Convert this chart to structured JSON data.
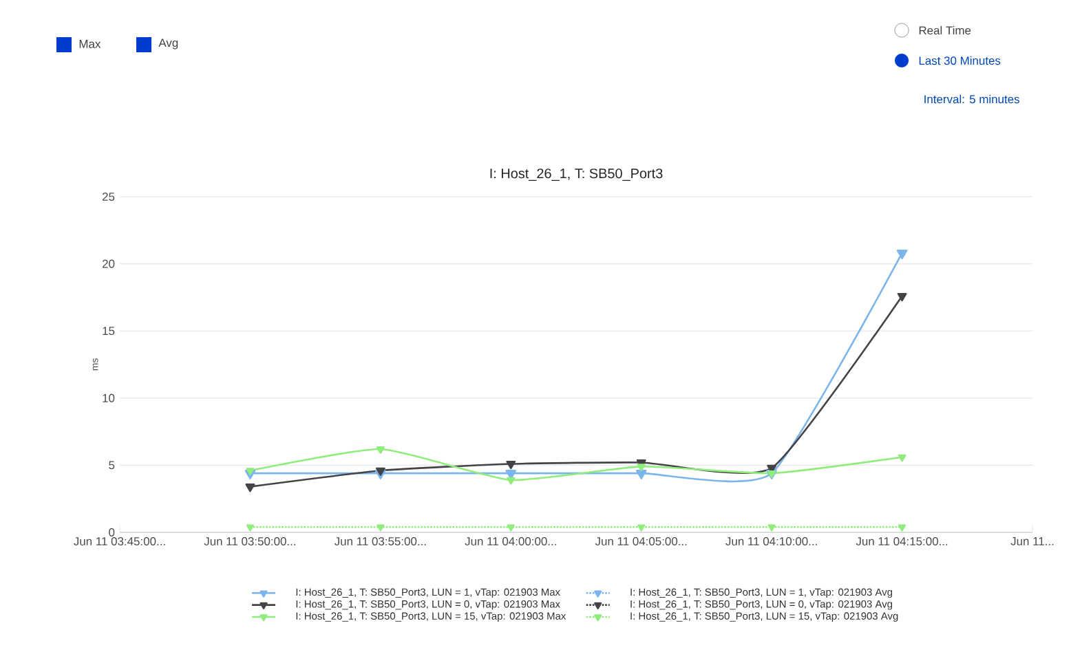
{
  "chart_data": {
    "type": "line",
    "title": "I: Host_26_1, T: SB50_Port3",
    "ylabel": "ms",
    "categories": [
      "Jun 11 03:45:00...",
      "Jun 11 03:50:00...",
      "Jun 11 03:55:00...",
      "Jun 11 04:00:00...",
      "Jun 11 04:05:00...",
      "Jun 11 04:10:00...",
      "Jun 11 04:15:00...",
      "Jun 11..."
    ],
    "series": [
      {
        "name": "I: Host_26_1, T: SB50_Port3, LUN = 1, vTap: 021903 Max",
        "color": "#7cb5ec",
        "line_style": "solid",
        "values": [
          null,
          4.4,
          4.4,
          4.4,
          4.4,
          4.4,
          20.8,
          null
        ]
      },
      {
        "name": "I: Host_26_1, T: SB50_Port3, LUN = 1, vTap: 021903 Avg",
        "color": "#7cb5ec",
        "line_style": "dotted",
        "values": [
          null,
          null,
          null,
          null,
          null,
          null,
          null,
          null
        ]
      },
      {
        "name": "I: Host_26_1, T: SB50_Port3, LUN = 0, vTap: 021903 Max",
        "color": "#434348",
        "line_style": "solid",
        "values": [
          null,
          3.4,
          4.6,
          5.1,
          5.2,
          4.8,
          17.6,
          null
        ]
      },
      {
        "name": "I: Host_26_1, T: SB50_Port3, LUN = 0, vTap: 021903 Avg",
        "color": "#434348",
        "line_style": "dotted",
        "values": [
          null,
          null,
          null,
          null,
          null,
          null,
          null,
          null
        ]
      },
      {
        "name": "I: Host_26_1, T: SB50_Port3, LUN = 15, vTap: 021903 Max",
        "color": "#90ed7d",
        "line_style": "solid",
        "values": [
          null,
          4.6,
          6.2,
          3.9,
          4.9,
          4.4,
          5.6,
          null
        ]
      },
      {
        "name": "I: Host_26_1, T: SB50_Port3, LUN = 15, vTap: 021903 Avg",
        "color": "#90ed7d",
        "line_style": "dotted",
        "values": [
          null,
          0.4,
          0.4,
          0.4,
          0.4,
          0.4,
          0.4,
          null
        ]
      }
    ],
    "ylim": [
      0,
      25
    ],
    "yticks": [
      0,
      5,
      10,
      15,
      20,
      25
    ],
    "grid": "y",
    "legend": "bottom",
    "marker": "triangle",
    "annotations": [
      "Max",
      "Avg",
      "Real Time",
      "Last 30 Minutes",
      "Interval: 5 minutes"
    ]
  }
}
